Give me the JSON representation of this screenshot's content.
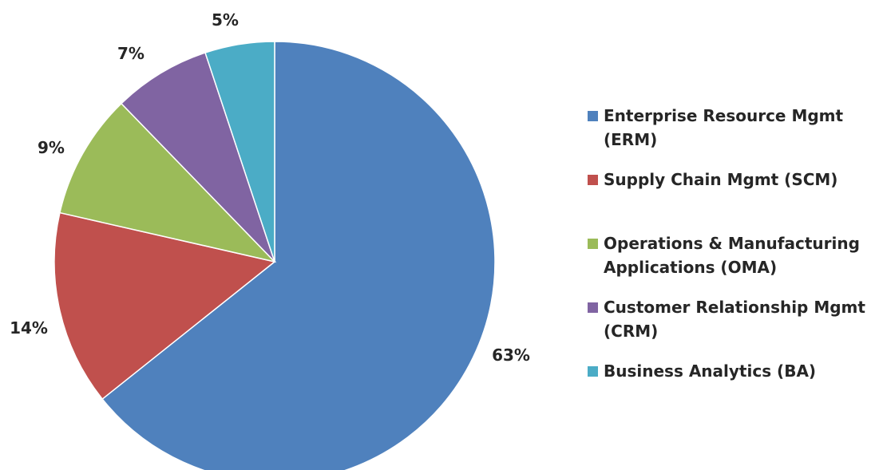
{
  "chart_data": {
    "type": "pie",
    "title": "",
    "legend_position": "right",
    "start_angle": "12 o'clock",
    "direction": "clockwise",
    "slices": [
      {
        "name": "Enterprise Resource Mgmt (ERM)",
        "value": 63,
        "label": "63%",
        "color": "#4F81BD"
      },
      {
        "name": "Supply Chain Mgmt (SCM)",
        "value": 14,
        "label": "14%",
        "color": "#C0504D"
      },
      {
        "name": "Operations & Manufacturing Applications (OMA)",
        "value": 9,
        "label": "9%",
        "color": "#9BBB59"
      },
      {
        "name": "Customer Relationship Mgmt (CRM)",
        "value": 7,
        "label": "7%",
        "color": "#8064A2"
      },
      {
        "name": "Business Analytics (BA)",
        "value": 5,
        "label": "5%",
        "color": "#4BACC6"
      }
    ]
  },
  "legend": {
    "items": [
      {
        "line1": "Enterprise Resource Mgmt",
        "line2": "(ERM)",
        "color": "#4F81BD"
      },
      {
        "line1": "Supply Chain Mgmt (SCM)",
        "line2": "",
        "color": "#C0504D"
      },
      {
        "line1": "Operations & Manufacturing",
        "line2": "Applications (OMA)",
        "color": "#9BBB59"
      },
      {
        "line1": "Customer Relationship Mgmt",
        "line2": "(CRM)",
        "color": "#8064A2"
      },
      {
        "line1": "Business Analytics (BA)",
        "line2": "",
        "color": "#4BACC6"
      }
    ]
  }
}
